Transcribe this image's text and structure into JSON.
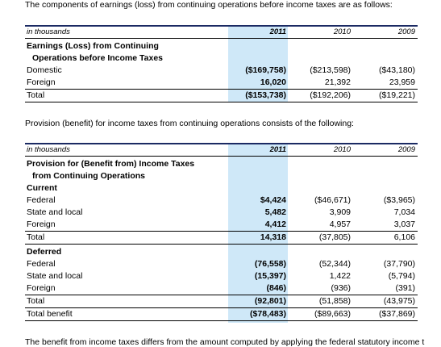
{
  "intro1": "The components of earnings (loss) from continuing operations before income taxes are as follows:",
  "intro2": "Provision (benefit) for income taxes from continuing operations consists of the following:",
  "intro3": "The benefit from income taxes differs from the amount computed by applying the federal statutory income t",
  "header": {
    "unit": "in thousands",
    "y2011": "2011",
    "y2010": "2010",
    "y2009": "2009"
  },
  "table1": {
    "title_line1": "Earnings (Loss) from Continuing",
    "title_line2": "Operations before Income Taxes",
    "rows": [
      {
        "label": "Domestic",
        "v2011": "($169,758)",
        "v2010": "($213,598)",
        "v2009": "($43,180)"
      },
      {
        "label": "Foreign",
        "v2011": "16,020",
        "v2010": "21,392",
        "v2009": "23,959"
      },
      {
        "label": "Total",
        "v2011": "($153,738)",
        "v2010": "($192,206)",
        "v2009": "($19,221)"
      }
    ]
  },
  "table2": {
    "title_line1": "Provision for (Benefit from) Income Taxes",
    "title_line2": "from Continuing Operations",
    "current_label": "Current",
    "current_rows": [
      {
        "label": "Federal",
        "v2011": "$4,424",
        "v2010": "($46,671)",
        "v2009": "($3,965)"
      },
      {
        "label": "State and local",
        "v2011": "5,482",
        "v2010": "3,909",
        "v2009": "7,034"
      },
      {
        "label": "Foreign",
        "v2011": "4,412",
        "v2010": "4,957",
        "v2009": "3,037"
      },
      {
        "label": "Total",
        "v2011": "14,318",
        "v2010": "(37,805)",
        "v2009": "6,106"
      }
    ],
    "deferred_label": "Deferred",
    "deferred_rows": [
      {
        "label": "Federal",
        "v2011": "(76,558)",
        "v2010": "(52,344)",
        "v2009": "(37,790)"
      },
      {
        "label": "State and local",
        "v2011": "(15,397)",
        "v2010": "1,422",
        "v2009": "(5,794)"
      },
      {
        "label": "Foreign",
        "v2011": "(846)",
        "v2010": "(936)",
        "v2009": "(391)"
      },
      {
        "label": "Total",
        "v2011": "(92,801)",
        "v2010": "(51,858)",
        "v2009": "(43,975)"
      },
      {
        "label": "Total benefit",
        "v2011": "($78,483)",
        "v2010": "($89,663)",
        "v2009": "($37,869)"
      }
    ]
  }
}
